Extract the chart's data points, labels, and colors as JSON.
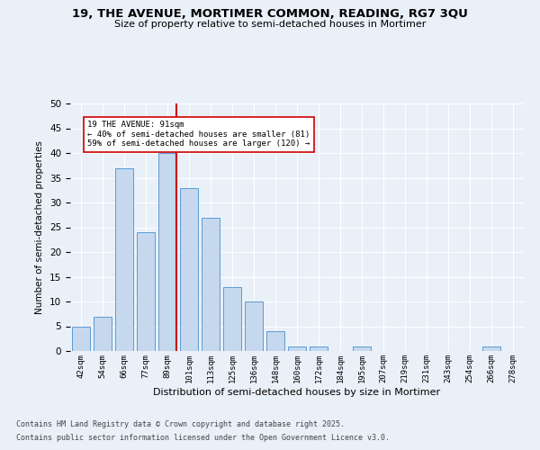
{
  "title1": "19, THE AVENUE, MORTIMER COMMON, READING, RG7 3QU",
  "title2": "Size of property relative to semi-detached houses in Mortimer",
  "xlabel": "Distribution of semi-detached houses by size in Mortimer",
  "ylabel": "Number of semi-detached properties",
  "categories": [
    "42sqm",
    "54sqm",
    "66sqm",
    "77sqm",
    "89sqm",
    "101sqm",
    "113sqm",
    "125sqm",
    "136sqm",
    "148sqm",
    "160sqm",
    "172sqm",
    "184sqm",
    "195sqm",
    "207sqm",
    "219sqm",
    "231sqm",
    "243sqm",
    "254sqm",
    "266sqm",
    "278sqm"
  ],
  "values": [
    5,
    7,
    37,
    24,
    40,
    33,
    27,
    13,
    10,
    4,
    1,
    1,
    0,
    1,
    0,
    0,
    0,
    0,
    0,
    1,
    0
  ],
  "bar_color": "#c5d8ed",
  "bar_edge_color": "#5b9bd5",
  "highlight_index": 4,
  "red_line_label": "19 THE AVENUE: 91sqm",
  "annotation_line1": "← 40% of semi-detached houses are smaller (81)",
  "annotation_line2": "59% of semi-detached houses are larger (120) →",
  "red_color": "#cc0000",
  "annotation_box_color": "#ffffff",
  "annotation_box_edge": "#cc0000",
  "ylim": [
    0,
    50
  ],
  "yticks": [
    0,
    5,
    10,
    15,
    20,
    25,
    30,
    35,
    40,
    45,
    50
  ],
  "footer1": "Contains HM Land Registry data © Crown copyright and database right 2025.",
  "footer2": "Contains public sector information licensed under the Open Government Licence v3.0.",
  "bg_color": "#eaf0f8",
  "plot_bg_color": "#eaf0f8"
}
